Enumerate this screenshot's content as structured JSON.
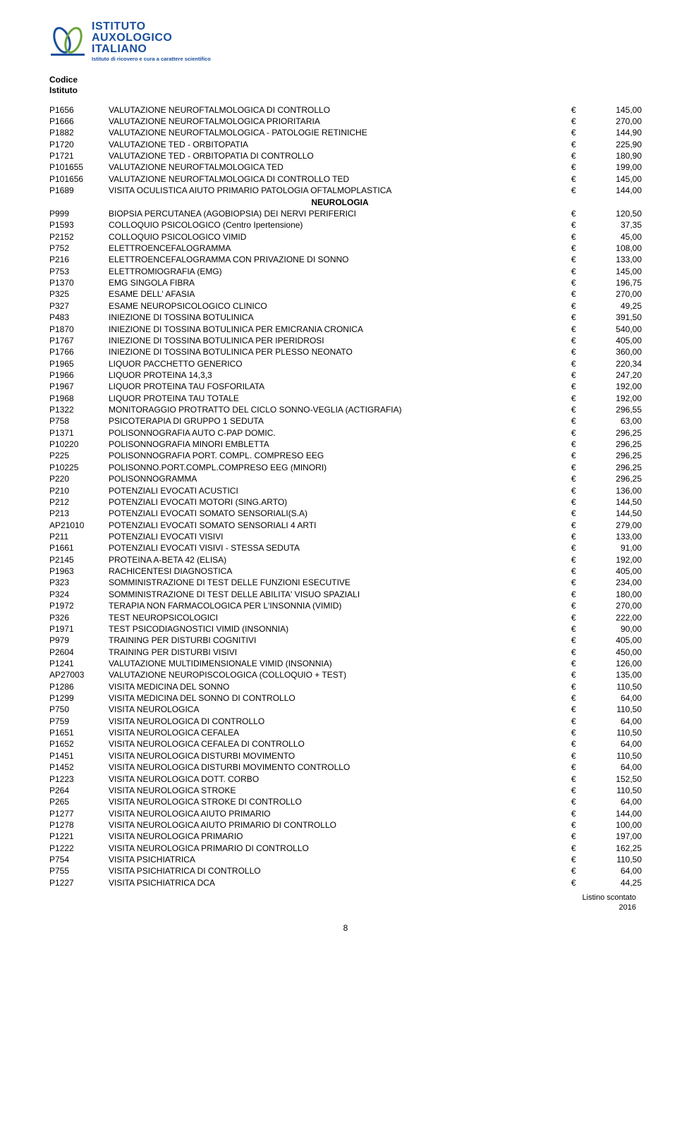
{
  "logo": {
    "line1": "ISTITUTO",
    "line2": "AUXOLOGICO",
    "line3": "ITALIANO",
    "tagline": "Istituto di ricovero e cura a carattere scientifico"
  },
  "header": {
    "label1": "Codice",
    "label2": "Istituto"
  },
  "currency": "€",
  "section1_rows": [
    {
      "code": "P1656",
      "desc": "VALUTAZIONE NEUROFTALMOLOGICA DI CONTROLLO",
      "val": "145,00"
    },
    {
      "code": "P1666",
      "desc": "VALUTAZIONE NEUROFTALMOLOGICA PRIORITARIA",
      "val": "270,00"
    },
    {
      "code": "P1882",
      "desc": "VALUTAZIONE NEUROFTALMOLOGICA - PATOLOGIE RETINICHE",
      "val": "144,90"
    },
    {
      "code": "P1720",
      "desc": "VALUTAZIONE TED - ORBITOPATIA",
      "val": "225,90"
    },
    {
      "code": "P1721",
      "desc": "VALUTAZIONE TED - ORBITOPATIA DI CONTROLLO",
      "val": "180,90"
    },
    {
      "code": "P101655",
      "desc": "VALUTAZIONE NEUROFTALMOLOGICA  TED",
      "val": "199,00"
    },
    {
      "code": "P101656",
      "desc": "VALUTAZIONE NEUROFTALMOLOGICA DI CONTROLLO  TED",
      "val": "145,00"
    },
    {
      "code": "P1689",
      "desc": "VISITA OCULISTICA AIUTO PRIMARIO PATOLOGIA OFTALMOPLASTICA",
      "val": "144,00"
    }
  ],
  "section2_title": "NEUROLOGIA",
  "section2_rows": [
    {
      "code": "P999",
      "desc": "BIOPSIA PERCUTANEA (AGOBIOPSIA) DEI NERVI PERIFERICI",
      "val": "120,50"
    },
    {
      "code": "P1593",
      "desc": "COLLOQUIO PSICOLOGICO (Centro Ipertensione)",
      "val": "37,35"
    },
    {
      "code": "P2152",
      "desc": "COLLOQUIO PSICOLOGICO VIMID",
      "val": "45,00"
    },
    {
      "code": "P752",
      "desc": "ELETTROENCEFALOGRAMMA",
      "val": "108,00"
    },
    {
      "code": "P216",
      "desc": "ELETTROENCEFALOGRAMMA CON PRIVAZIONE DI SONNO",
      "val": "133,00"
    },
    {
      "code": "P753",
      "desc": "ELETTROMIOGRAFIA  (EMG)",
      "val": "145,00"
    },
    {
      "code": "P1370",
      "desc": "EMG SINGOLA FIBRA",
      "val": "196,75"
    },
    {
      "code": "P325",
      "desc": "ESAME  DELL' AFASIA",
      "val": "270,00"
    },
    {
      "code": "P327",
      "desc": "ESAME NEUROPSICOLOGICO CLINICO",
      "val": "49,25"
    },
    {
      "code": "P483",
      "desc": "INIEZIONE DI TOSSINA BOTULINICA",
      "val": "391,50"
    },
    {
      "code": "P1870",
      "desc": "INIEZIONE DI TOSSINA BOTULINICA PER EMICRANIA CRONICA",
      "val": "540,00"
    },
    {
      "code": "P1767",
      "desc": "INIEZIONE DI TOSSINA BOTULINICA PER IPERIDROSI",
      "val": "405,00"
    },
    {
      "code": "P1766",
      "desc": "INIEZIONE DI TOSSINA BOTULINICA PER PLESSO NEONATO",
      "val": "360,00"
    },
    {
      "code": "P1965",
      "desc": "LIQUOR PACCHETTO GENERICO",
      "val": "220,34"
    },
    {
      "code": "P1966",
      "desc": "LIQUOR PROTEINA 14,3,3",
      "val": "247,20"
    },
    {
      "code": "P1967",
      "desc": "LIQUOR PROTEINA TAU FOSFORILATA",
      "val": "192,00"
    },
    {
      "code": "P1968",
      "desc": "LIQUOR PROTEINA TAU TOTALE",
      "val": "192,00"
    },
    {
      "code": "P1322",
      "desc": "MONITORAGGIO PROTRATTO DEL CICLO SONNO-VEGLIA (ACTIGRAFIA)",
      "val": "296,55"
    },
    {
      "code": "P758",
      "desc": "PSICOTERAPIA DI GRUPPO 1 SEDUTA",
      "val": "63,00"
    },
    {
      "code": "P1371",
      "desc": "POLISONNOGRAFIA AUTO C-PAP DOMIC.",
      "val": "296,25"
    },
    {
      "code": "P10220",
      "desc": "POLISONNOGRAFIA MINORI EMBLETTA",
      "val": "296,25"
    },
    {
      "code": "P225",
      "desc": "POLISONNOGRAFIA PORT. COMPL. COMPRESO EEG",
      "val": "296,25"
    },
    {
      "code": "P10225",
      "desc": "POLISONNO.PORT.COMPL.COMPRESO EEG (MINORI)",
      "val": "296,25"
    },
    {
      "code": "P220",
      "desc": "POLISONNOGRAMMA",
      "val": "296,25"
    },
    {
      "code": "P210",
      "desc": "POTENZIALI EVOCATI ACUSTICI",
      "val": "136,00"
    },
    {
      "code": "P212",
      "desc": "POTENZIALI EVOCATI MOTORI (SING.ARTO)",
      "val": "144,50"
    },
    {
      "code": "P213",
      "desc": "POTENZIALI EVOCATI SOMATO SENSORIALI(S.A)",
      "val": "144,50"
    },
    {
      "code": "AP21010",
      "desc": "POTENZIALI EVOCATI SOMATO SENSORIALI 4 ARTI",
      "val": "279,00"
    },
    {
      "code": "P211",
      "desc": "POTENZIALI EVOCATI VISIVI",
      "val": "133,00"
    },
    {
      "code": "P1661",
      "desc": "POTENZIALI EVOCATI VISIVI - STESSA SEDUTA",
      "val": "91,00"
    },
    {
      "code": "P2145",
      "desc": "PROTEINA A-BETA 42 (ELISA)",
      "val": "192,00"
    },
    {
      "code": "P1963",
      "desc": "RACHICENTESI DIAGNOSTICA",
      "val": "405,00"
    },
    {
      "code": "P323",
      "desc": "SOMMINISTRAZIONE DI TEST DELLE FUNZIONI ESECUTIVE",
      "val": "234,00"
    },
    {
      "code": "P324",
      "desc": "SOMMINISTRAZIONE DI TEST DELLE  ABILITA' VISUO SPAZIALI",
      "val": "180,00"
    },
    {
      "code": "P1972",
      "desc": "TERAPIA NON FARMACOLOGICA PER L'INSONNIA (VIMID)",
      "val": "270,00"
    },
    {
      "code": "P326",
      "desc": "TEST NEUROPSICOLOGICI",
      "val": "222,00"
    },
    {
      "code": "P1971",
      "desc": "TEST PSICODIAGNOSTICI VIMID (INSONNIA)",
      "val": "90,00"
    },
    {
      "code": "P979",
      "desc": "TRAINING PER DISTURBI COGNITIVI",
      "val": "405,00"
    },
    {
      "code": "P2604",
      "desc": "TRAINING PER DISTURBI VISIVI",
      "val": "450,00"
    },
    {
      "code": "P1241",
      "desc": "VALUTAZIONE MULTIDIMENSIONALE VIMID (INSONNIA)",
      "val": "126,00"
    },
    {
      "code": "AP27003",
      "desc": "VALUTAZIONE NEUROPISCOLOGICA (COLLOQUIO + TEST)",
      "val": "135,00"
    },
    {
      "code": "P1286",
      "desc": "VISITA MEDICINA DEL SONNO",
      "val": "110,50"
    },
    {
      "code": "P1299",
      "desc": "VISITA MEDICINA DEL SONNO DI CONTROLLO",
      "val": "64,00"
    },
    {
      "code": "P750",
      "desc": "VISITA NEUROLOGICA",
      "val": "110,50"
    },
    {
      "code": "P759",
      "desc": "VISITA NEUROLOGICA DI CONTROLLO",
      "val": "64,00"
    },
    {
      "code": "P1651",
      "desc": "VISITA NEUROLOGICA CEFALEA",
      "val": "110,50"
    },
    {
      "code": "P1652",
      "desc": "VISITA NEUROLOGICA CEFALEA DI CONTROLLO",
      "val": "64,00"
    },
    {
      "code": "P1451",
      "desc": "VISITA NEUROLOGICA DISTURBI MOVIMENTO",
      "val": "110,50"
    },
    {
      "code": "P1452",
      "desc": "VISITA NEUROLOGICA DISTURBI MOVIMENTO CONTROLLO",
      "val": "64,00"
    },
    {
      "code": "P1223",
      "desc": "VISITA NEUROLOGICA DOTT. CORBO",
      "val": "152,50"
    },
    {
      "code": "P264",
      "desc": "VISITA NEUROLOGICA STROKE",
      "val": "110,50"
    },
    {
      "code": "P265",
      "desc": "VISITA NEUROLOGICA STROKE DI CONTROLLO",
      "val": "64,00"
    },
    {
      "code": "P1277",
      "desc": "VISITA NEUROLOGICA AIUTO PRIMARIO",
      "val": "144,00"
    },
    {
      "code": "P1278",
      "desc": "VISITA NEUROLOGICA AIUTO PRIMARIO DI CONTROLLO",
      "val": "100,00"
    },
    {
      "code": "P1221",
      "desc": "VISITA NEUROLOGICA PRIMARIO",
      "val": "197,00"
    },
    {
      "code": "P1222",
      "desc": "VISITA NEUROLOGICA PRIMARIO DI CONTROLLO",
      "val": "162,25"
    },
    {
      "code": "P754",
      "desc": "VISITA PSICHIATRICA",
      "val": "110,50"
    },
    {
      "code": "P755",
      "desc": "VISITA PSICHIATRICA DI CONTROLLO",
      "val": "64,00"
    },
    {
      "code": "P1227",
      "desc": "VISITA PSICHIATRICA DCA",
      "val": "44,25"
    }
  ],
  "footer": {
    "right1": "Listino scontato",
    "right2": "2016",
    "page": "8"
  }
}
